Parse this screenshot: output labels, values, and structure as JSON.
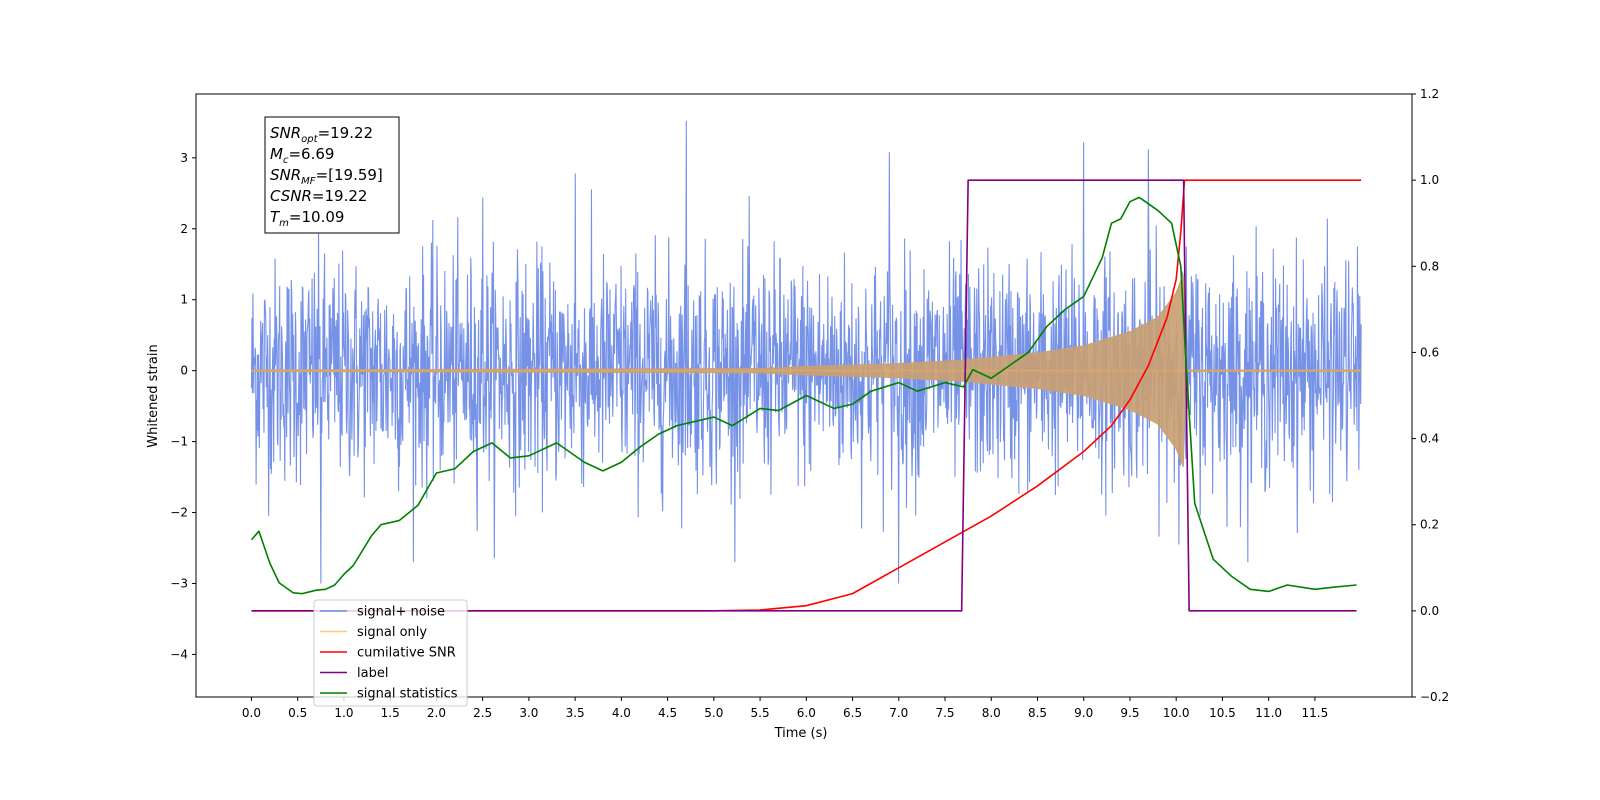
{
  "chart_data": {
    "type": "line",
    "xlabel": "Time (s)",
    "ylabel": "Whitened strain",
    "xlim": [
      -0.6,
      12.55
    ],
    "ylim_left": [
      -4.6,
      3.9
    ],
    "ylim_right": [
      -0.2,
      1.2
    ],
    "x_ticks": [
      "0.0",
      "0.5",
      "1.0",
      "1.5",
      "2.0",
      "2.5",
      "3.0",
      "3.5",
      "4.0",
      "4.5",
      "5.0",
      "5.5",
      "6.0",
      "6.5",
      "7.0",
      "7.5",
      "8.0",
      "8.5",
      "9.0",
      "9.5",
      "10.0",
      "10.5",
      "11.0",
      "11.5"
    ],
    "y_ticks_left": [
      "3",
      "2",
      "1",
      "0",
      "−1",
      "−2",
      "−3",
      "−4"
    ],
    "y_ticks_right": [
      "1.2",
      "1.0",
      "0.8",
      "0.6",
      "0.4",
      "0.2",
      "0.0",
      "−0.2"
    ],
    "annotation": [
      {
        "base": "SNR",
        "sub": "opt",
        "rest": "=19.22"
      },
      {
        "base": "M",
        "sub": "c",
        "rest": "=6.69"
      },
      {
        "base": "SNR",
        "sub": "MF",
        "rest": "=[19.59]"
      },
      {
        "base": "CSNR",
        "sub": "",
        "rest": "=19.22"
      },
      {
        "base": "T",
        "sub": "m",
        "rest": "=10.09"
      }
    ],
    "legend_position": "lower-left",
    "legend": [
      {
        "label": "signal+ noise",
        "color": "#6f8ce6"
      },
      {
        "label": "signal only",
        "color": "#ffc87a"
      },
      {
        "label": "cumilative SNR",
        "color": "#ff0000"
      },
      {
        "label": "label",
        "color": "#800080"
      },
      {
        "label": "signal statistics",
        "color": "#008000"
      }
    ],
    "series": [
      {
        "name": "signal+ noise",
        "axis": "left",
        "color": "#6f8ce6",
        "x_range": [
          0.0,
          12.0
        ],
        "typical_envelope": [
          -1.4,
          1.4
        ],
        "notable_peaks": [
          [
            4.7,
            3.52
          ],
          [
            9.0,
            3.22
          ],
          [
            6.9,
            3.08
          ],
          [
            9.7,
            3.12
          ],
          [
            0.75,
            -3.0
          ],
          [
            7.0,
            -3.0
          ],
          [
            3.5,
            2.78
          ],
          [
            2.5,
            2.44
          ]
        ]
      },
      {
        "name": "signal only",
        "axis": "left",
        "color": "#c9a073",
        "envelope": [
          [
            0.0,
            0.01
          ],
          [
            5.5,
            0.03
          ],
          [
            6.0,
            0.06
          ],
          [
            7.0,
            0.1
          ],
          [
            7.7,
            0.15
          ],
          [
            8.5,
            0.25
          ],
          [
            9.0,
            0.35
          ],
          [
            9.5,
            0.55
          ],
          [
            9.8,
            0.75
          ],
          [
            10.0,
            1.1
          ],
          [
            10.09,
            1.4
          ],
          [
            10.1,
            0.01
          ],
          [
            12.0,
            0.01
          ]
        ]
      },
      {
        "name": "cumilative SNR",
        "axis": "right",
        "color": "#ff0000",
        "points": [
          [
            0.0,
            0.0
          ],
          [
            5.0,
            0.0
          ],
          [
            5.5,
            0.002
          ],
          [
            6.0,
            0.012
          ],
          [
            6.5,
            0.04
          ],
          [
            7.0,
            0.1
          ],
          [
            7.5,
            0.16
          ],
          [
            8.0,
            0.22
          ],
          [
            8.5,
            0.29
          ],
          [
            9.0,
            0.37
          ],
          [
            9.3,
            0.43
          ],
          [
            9.5,
            0.49
          ],
          [
            9.7,
            0.57
          ],
          [
            9.9,
            0.68
          ],
          [
            10.0,
            0.77
          ],
          [
            10.05,
            0.88
          ],
          [
            10.09,
            1.0
          ],
          [
            12.0,
            1.0
          ]
        ]
      },
      {
        "name": "label",
        "axis": "right",
        "color": "#800080",
        "points": [
          [
            0.0,
            0.0
          ],
          [
            7.68,
            0.0
          ],
          [
            7.75,
            1.0
          ],
          [
            10.08,
            1.0
          ],
          [
            10.14,
            0.0
          ],
          [
            11.95,
            0.0
          ]
        ]
      },
      {
        "name": "signal statistics",
        "axis": "right",
        "color": "#008000",
        "points": [
          [
            0.0,
            0.165
          ],
          [
            0.08,
            0.185
          ],
          [
            0.2,
            0.11
          ],
          [
            0.3,
            0.065
          ],
          [
            0.45,
            0.042
          ],
          [
            0.55,
            0.04
          ],
          [
            0.7,
            0.048
          ],
          [
            0.8,
            0.05
          ],
          [
            0.9,
            0.06
          ],
          [
            1.0,
            0.085
          ],
          [
            1.1,
            0.105
          ],
          [
            1.2,
            0.14
          ],
          [
            1.3,
            0.175
          ],
          [
            1.4,
            0.2
          ],
          [
            1.6,
            0.21
          ],
          [
            1.8,
            0.245
          ],
          [
            2.0,
            0.32
          ],
          [
            2.2,
            0.33
          ],
          [
            2.4,
            0.37
          ],
          [
            2.6,
            0.39
          ],
          [
            2.8,
            0.355
          ],
          [
            3.0,
            0.36
          ],
          [
            3.3,
            0.39
          ],
          [
            3.6,
            0.345
          ],
          [
            3.8,
            0.325
          ],
          [
            4.0,
            0.345
          ],
          [
            4.2,
            0.38
          ],
          [
            4.4,
            0.41
          ],
          [
            4.6,
            0.43
          ],
          [
            5.0,
            0.45
          ],
          [
            5.2,
            0.43
          ],
          [
            5.5,
            0.47
          ],
          [
            5.7,
            0.465
          ],
          [
            6.0,
            0.5
          ],
          [
            6.3,
            0.47
          ],
          [
            6.5,
            0.48
          ],
          [
            6.7,
            0.51
          ],
          [
            7.0,
            0.53
          ],
          [
            7.2,
            0.51
          ],
          [
            7.5,
            0.53
          ],
          [
            7.7,
            0.52
          ],
          [
            7.8,
            0.56
          ],
          [
            8.0,
            0.54
          ],
          [
            8.2,
            0.57
          ],
          [
            8.4,
            0.6
          ],
          [
            8.6,
            0.66
          ],
          [
            8.8,
            0.7
          ],
          [
            9.0,
            0.73
          ],
          [
            9.2,
            0.82
          ],
          [
            9.3,
            0.9
          ],
          [
            9.4,
            0.91
          ],
          [
            9.5,
            0.95
          ],
          [
            9.6,
            0.96
          ],
          [
            9.8,
            0.93
          ],
          [
            9.95,
            0.9
          ],
          [
            10.05,
            0.8
          ],
          [
            10.1,
            0.6
          ],
          [
            10.2,
            0.25
          ],
          [
            10.4,
            0.12
          ],
          [
            10.6,
            0.08
          ],
          [
            10.8,
            0.05
          ],
          [
            11.0,
            0.045
          ],
          [
            11.2,
            0.06
          ],
          [
            11.5,
            0.05
          ],
          [
            11.7,
            0.055
          ],
          [
            11.95,
            0.06
          ]
        ]
      }
    ]
  }
}
